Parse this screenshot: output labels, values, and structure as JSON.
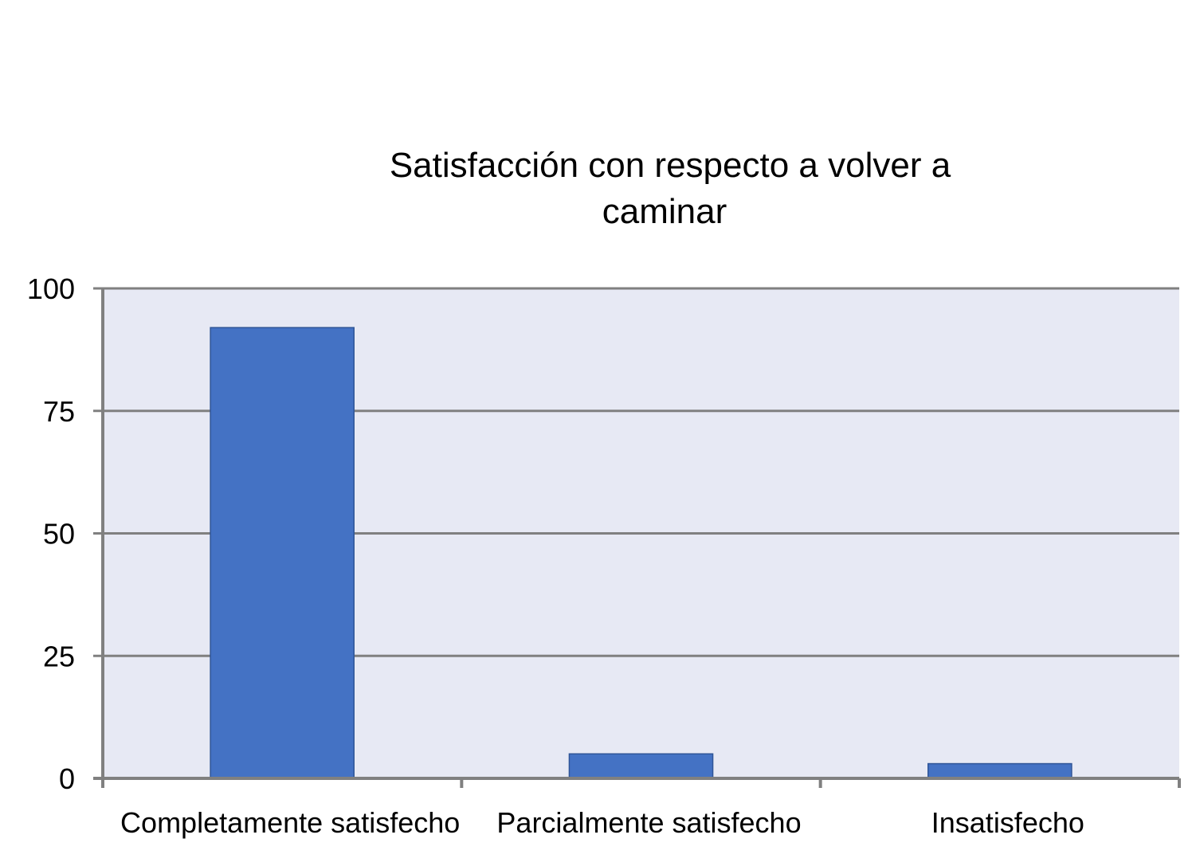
{
  "chart_data": {
    "type": "bar",
    "title_lines": [
      "Satisfacción con respecto a volver a",
      "caminar"
    ],
    "categories": [
      "Completamente satisfecho",
      "Parcialmente satisfecho",
      "Insatisfecho"
    ],
    "series": [
      {
        "values": [
          92,
          5,
          3
        ]
      }
    ],
    "xlabel": "",
    "ylabel": "",
    "ylim": [
      0,
      100
    ],
    "yticks": [
      0,
      25,
      50,
      75,
      100
    ],
    "grid": true,
    "legend": "none",
    "colors": {
      "bar_fill": "#4472C4",
      "bar_stroke": "#2F5597",
      "plot_background": "#E7E9F4",
      "gridline": "#808080",
      "axis": "#808080"
    }
  }
}
